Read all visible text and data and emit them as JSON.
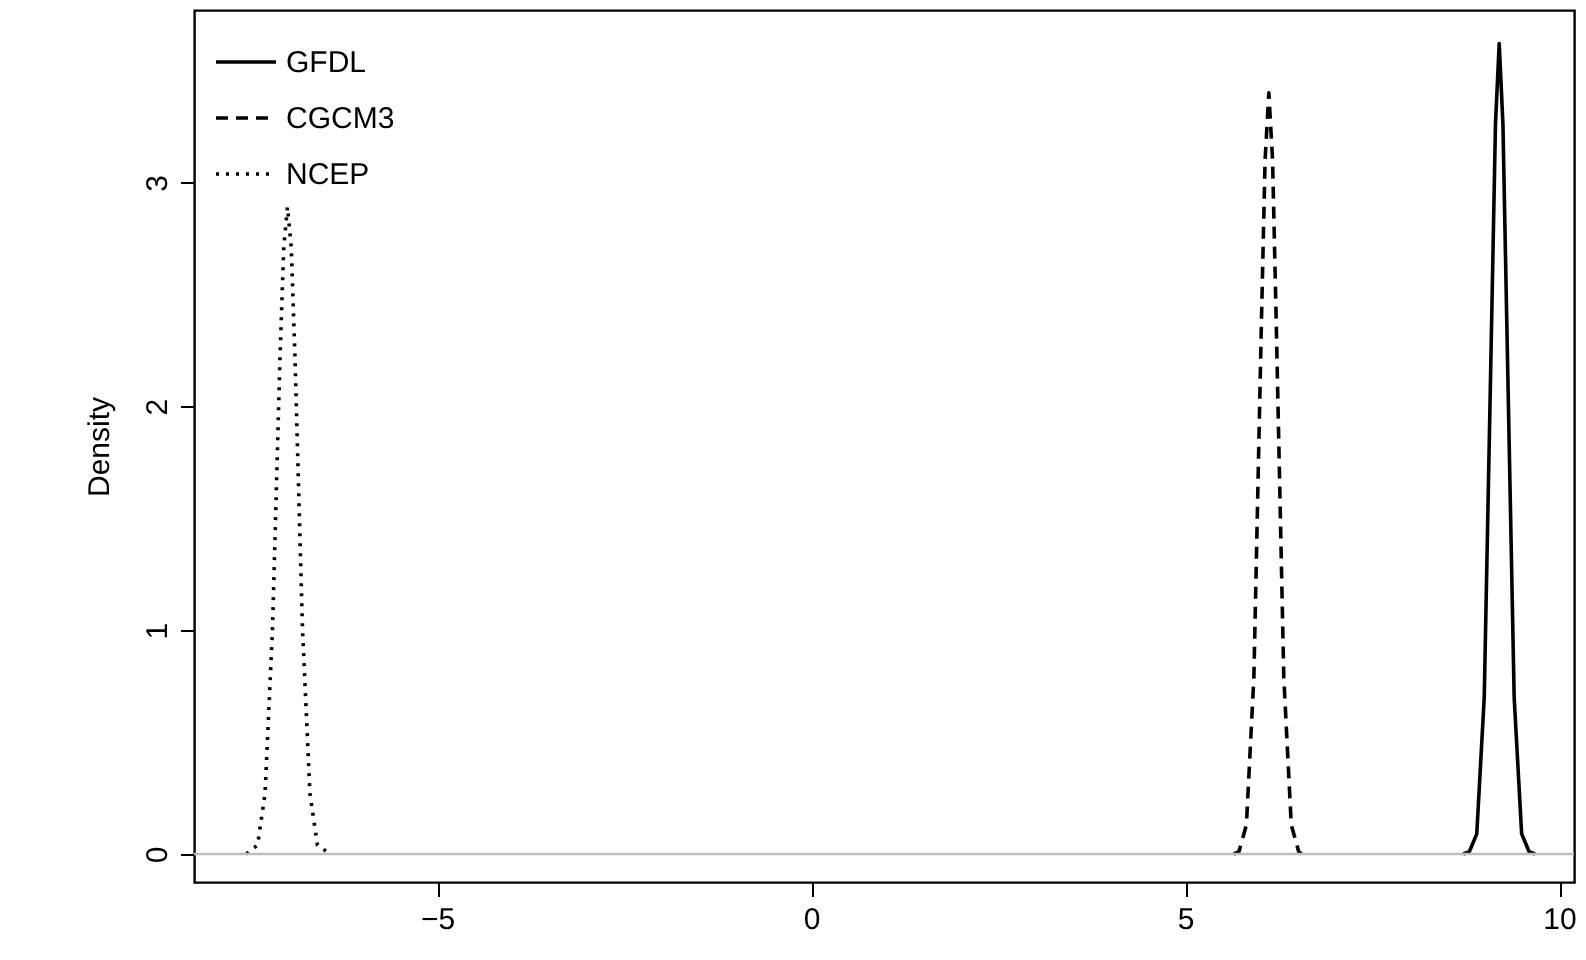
{
  "chart_data": {
    "type": "line",
    "ylabel": "Density",
    "xlim": [
      -8.25,
      10.2
    ],
    "ylim": [
      -0.125,
      3.77
    ],
    "xticks": [
      -5,
      0,
      5,
      10
    ],
    "yticks": [
      0,
      1,
      2,
      3
    ],
    "grid": false,
    "legend": "top left",
    "marker": "none",
    "ref_lines": [
      {
        "axis": "y",
        "value": 0,
        "color": "#bebebe"
      }
    ],
    "series": [
      {
        "name": "GFDL",
        "color": "#000000",
        "line_style": "solid",
        "x": [
          8.72,
          8.8,
          8.9,
          9.0,
          9.1,
          9.15,
          9.2,
          9.25,
          9.3,
          9.4,
          9.5,
          9.6,
          9.68
        ],
        "values": [
          0,
          0.01,
          0.09,
          0.7,
          2.4,
          3.26,
          3.62,
          3.26,
          2.4,
          0.7,
          0.09,
          0.01,
          0
        ]
      },
      {
        "name": "CGCM3",
        "color": "#000000",
        "line_style": "dashed",
        "x": [
          5.65,
          5.72,
          5.82,
          5.92,
          6.02,
          6.07,
          6.12,
          6.17,
          6.22,
          6.32,
          6.42,
          6.52,
          6.56
        ],
        "values": [
          0,
          0.01,
          0.13,
          0.79,
          2.36,
          3.1,
          3.4,
          3.1,
          2.36,
          0.79,
          0.13,
          0.01,
          0
        ]
      },
      {
        "name": "NCEP",
        "color": "#000000",
        "line_style": "dotted",
        "x": [
          -7.55,
          -7.4,
          -7.3,
          -7.2,
          -7.1,
          -7.05,
          -7.0,
          -6.95,
          -6.9,
          -6.8,
          -6.7,
          -6.6,
          -6.43
        ],
        "values": [
          0,
          0.04,
          0.27,
          1.01,
          2.22,
          2.71,
          2.89,
          2.71,
          2.22,
          1.01,
          0.27,
          0.04,
          0
        ]
      }
    ]
  }
}
